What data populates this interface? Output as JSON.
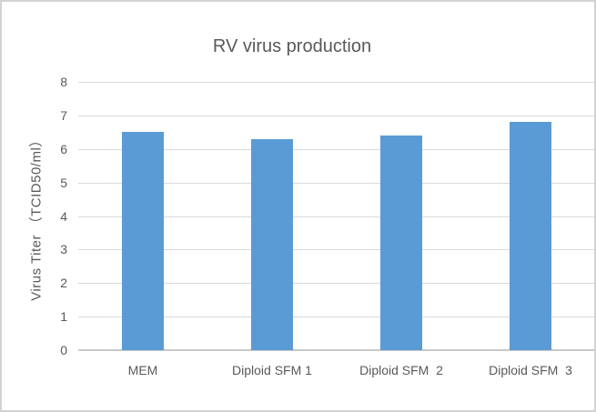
{
  "window": {
    "background": "#ffffff",
    "border_color": "#d3d3d3"
  },
  "chart_data": {
    "type": "bar",
    "title": "RV virus production",
    "categories": [
      "MEM",
      "Diploid SFM 1",
      "Diploid SFM  2",
      "Diploid SFM  3"
    ],
    "values": [
      6.5,
      6.3,
      6.4,
      6.8
    ],
    "xlabel": "",
    "ylabel": "Virus Titer （TCID50/ml）",
    "ylim": [
      0,
      8
    ],
    "yticks": [
      0,
      1,
      2,
      3,
      4,
      5,
      6,
      7,
      8
    ],
    "grid": true,
    "legend_position": "none",
    "bar_color": "#5b9bd5",
    "text_color": "#595959",
    "gridline_color": "#d9d9d9",
    "axis_line_color": "#c9c9c9"
  }
}
